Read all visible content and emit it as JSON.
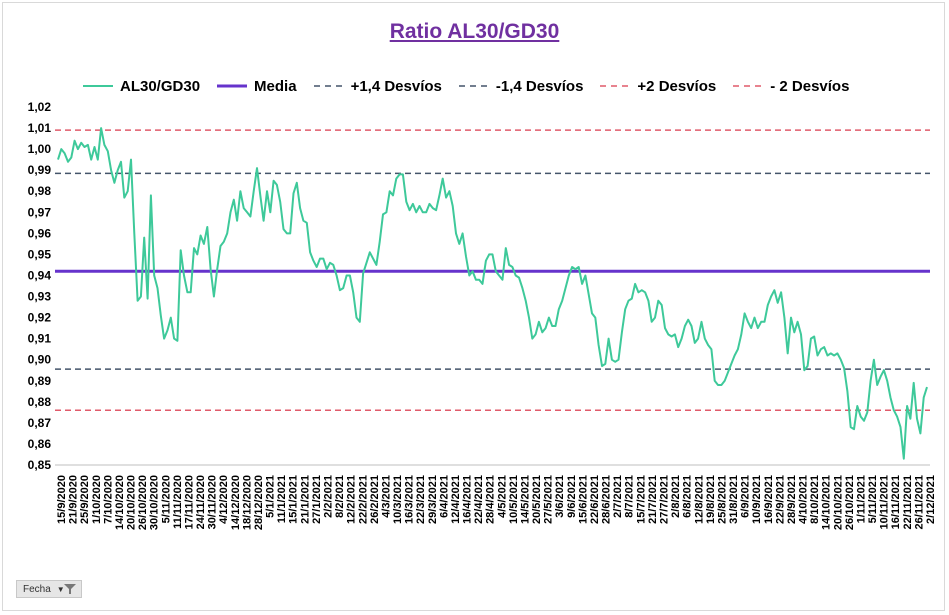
{
  "chart_data": {
    "type": "line",
    "title": "Ratio AL30/GD30",
    "xlabel": "",
    "ylabel": "",
    "ylim": [
      0.85,
      1.02
    ],
    "y_ticks": [
      "0,85",
      "0,86",
      "0,87",
      "0,88",
      "0,89",
      "0,90",
      "0,91",
      "0,92",
      "0,93",
      "0,94",
      "0,95",
      "0,96",
      "0,97",
      "0,98",
      "0,99",
      "1,00",
      "1,01",
      "1,02"
    ],
    "x_tick_labels": [
      "15/9/2020",
      "21/9/2020",
      "25/9/2020",
      "1/10/2020",
      "7/10/2020",
      "14/10/2020",
      "20/10/2020",
      "26/10/2020",
      "30/10/2020",
      "5/11/2020",
      "11/11/2020",
      "17/11/2020",
      "24/11/2020",
      "30/11/2020",
      "4/12/2020",
      "14/12/2020",
      "18/12/2020",
      "28/12/2020",
      "5/1/2021",
      "11/1/2021",
      "15/1/2021",
      "21/1/2021",
      "27/1/2021",
      "2/2/2021",
      "8/2/2021",
      "12/2/2021",
      "22/2/2021",
      "26/2/2021",
      "4/3/2021",
      "10/3/2021",
      "16/3/2021",
      "22/3/2021",
      "29/3/2021",
      "6/4/2021",
      "12/4/2021",
      "16/4/2021",
      "22/4/2021",
      "28/4/2021",
      "4/5/2021",
      "10/5/2021",
      "14/5/2021",
      "20/5/2021",
      "27/5/2021",
      "3/6/2021",
      "9/6/2021",
      "15/6/2021",
      "22/6/2021",
      "28/6/2021",
      "2/7/2021",
      "8/7/2021",
      "15/7/2021",
      "21/7/2021",
      "27/7/2021",
      "2/8/2021",
      "6/8/2021",
      "12/8/2021",
      "19/8/2021",
      "25/8/2021",
      "31/8/2021",
      "6/9/2021",
      "10/9/2021",
      "16/9/2021",
      "22/9/2021",
      "28/9/2021",
      "4/10/2021",
      "8/10/2021",
      "14/10/2021",
      "20/10/2021",
      "26/10/2021",
      "1/11/2021",
      "5/11/2021",
      "10/11/2021",
      "16/11/2021",
      "22/11/2021",
      "26/11/2021",
      "2/12/2021"
    ],
    "series": [
      {
        "name": "AL30/GD30",
        "color": "#3ec99a",
        "style": "solid",
        "values": [
          0.995,
          1.0,
          0.998,
          0.994,
          0.996,
          1.004,
          1.0,
          1.003,
          1.001,
          1.002,
          0.995,
          1.001,
          0.995,
          1.01,
          1.002,
          0.999,
          0.99,
          0.984,
          0.99,
          0.994,
          0.977,
          0.98,
          0.995,
          0.96,
          0.928,
          0.93,
          0.958,
          0.929,
          0.978,
          0.94,
          0.934,
          0.921,
          0.91,
          0.914,
          0.92,
          0.91,
          0.909,
          0.952,
          0.94,
          0.932,
          0.932,
          0.953,
          0.95,
          0.959,
          0.955,
          0.963,
          0.943,
          0.93,
          0.943,
          0.954,
          0.956,
          0.96,
          0.97,
          0.976,
          0.966,
          0.98,
          0.972,
          0.97,
          0.968,
          0.98,
          0.991,
          0.978,
          0.966,
          0.98,
          0.97,
          0.985,
          0.983,
          0.975,
          0.962,
          0.96,
          0.96,
          0.979,
          0.984,
          0.972,
          0.966,
          0.965,
          0.951,
          0.947,
          0.944,
          0.948,
          0.948,
          0.943,
          0.946,
          0.945,
          0.94,
          0.933,
          0.934,
          0.94,
          0.94,
          0.932,
          0.92,
          0.918,
          0.941,
          0.946,
          0.951,
          0.948,
          0.945,
          0.956,
          0.969,
          0.97,
          0.98,
          0.978,
          0.986,
          0.988,
          0.988,
          0.975,
          0.971,
          0.974,
          0.97,
          0.973,
          0.97,
          0.97,
          0.974,
          0.972,
          0.971,
          0.978,
          0.986,
          0.977,
          0.98,
          0.973,
          0.96,
          0.955,
          0.96,
          0.949,
          0.94,
          0.942,
          0.938,
          0.938,
          0.936,
          0.947,
          0.95,
          0.95,
          0.942,
          0.94,
          0.938,
          0.953,
          0.945,
          0.944,
          0.94,
          0.939,
          0.934,
          0.928,
          0.92,
          0.91,
          0.912,
          0.918,
          0.913,
          0.915,
          0.92,
          0.916,
          0.916,
          0.924,
          0.928,
          0.934,
          0.94,
          0.944,
          0.943,
          0.944,
          0.936,
          0.94,
          0.931,
          0.922,
          0.92,
          0.907,
          0.897,
          0.898,
          0.91,
          0.9,
          0.899,
          0.9,
          0.913,
          0.924,
          0.928,
          0.929,
          0.936,
          0.932,
          0.933,
          0.932,
          0.928,
          0.918,
          0.92,
          0.928,
          0.926,
          0.915,
          0.912,
          0.911,
          0.912,
          0.906,
          0.91,
          0.916,
          0.919,
          0.916,
          0.908,
          0.91,
          0.918,
          0.91,
          0.907,
          0.905,
          0.89,
          0.888,
          0.888,
          0.89,
          0.894,
          0.898,
          0.902,
          0.905,
          0.912,
          0.922,
          0.918,
          0.915,
          0.92,
          0.915,
          0.918,
          0.918,
          0.926,
          0.93,
          0.933,
          0.927,
          0.932,
          0.92,
          0.903,
          0.92,
          0.913,
          0.918,
          0.912,
          0.895,
          0.897,
          0.91,
          0.911,
          0.902,
          0.905,
          0.906,
          0.902,
          0.903,
          0.902,
          0.903,
          0.9,
          0.896,
          0.885,
          0.868,
          0.867,
          0.878,
          0.873,
          0.871,
          0.875,
          0.89,
          0.9,
          0.888,
          0.892,
          0.895,
          0.89,
          0.882,
          0.876,
          0.873,
          0.868,
          0.853,
          0.878,
          0.872,
          0.889,
          0.872,
          0.865,
          0.882,
          0.887
        ]
      },
      {
        "name": "Media",
        "color": "#6633cc",
        "style": "solid",
        "value": 0.942
      },
      {
        "name": "+1,4 Desvíos",
        "color": "#44546a",
        "style": "dashed",
        "value": 0.9885
      },
      {
        "name": "-1,4 Desvíos",
        "color": "#44546a",
        "style": "dashed",
        "value": 0.8955
      },
      {
        "name": "+2 Desvíos",
        "color": "#e05a6a",
        "style": "dashed",
        "value": 1.009
      },
      {
        "name": "- 2 Desvíos",
        "color": "#e05a6a",
        "style": "dashed",
        "value": 0.876
      }
    ],
    "grid": false,
    "legend_position": "top"
  },
  "filter_button": {
    "label": "Fecha",
    "arrow": "▼"
  }
}
